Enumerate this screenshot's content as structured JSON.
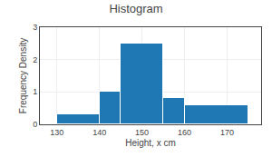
{
  "chart_data": {
    "type": "histogram",
    "title": "Histogram",
    "bins": [
      130,
      140,
      145,
      155,
      160,
      175
    ],
    "values": [
      0.3,
      1.0,
      2.5,
      0.8,
      0.6
    ],
    "xlabel": "Height, x cm",
    "ylabel": "Frequency Density",
    "xlim": [
      126,
      178
    ],
    "xticks": [
      130,
      140,
      150,
      160,
      170
    ],
    "ylim": [
      0,
      3
    ],
    "yticks": [
      0,
      1,
      2,
      3
    ],
    "grid": true
  }
}
